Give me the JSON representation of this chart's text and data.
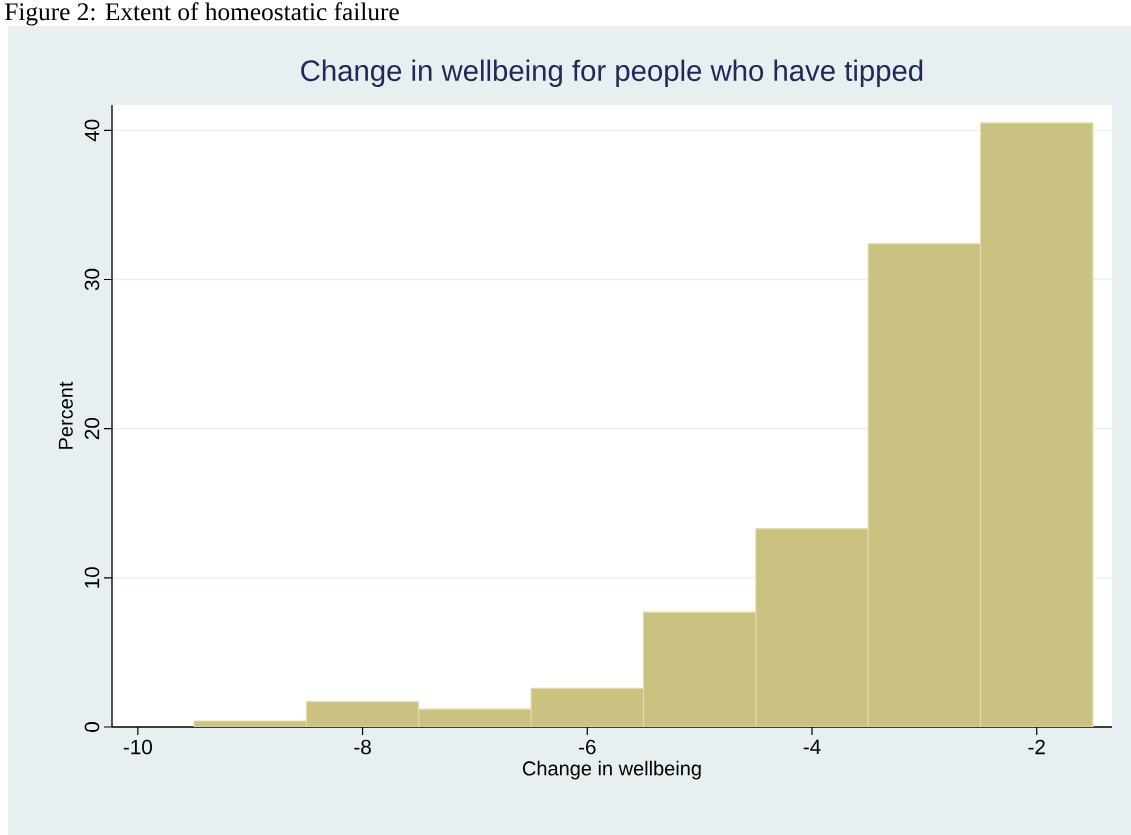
{
  "chart_data": {
    "type": "histogram",
    "title": "Change in wellbeing for people who have tipped",
    "xlabel": "Change in wellbeing",
    "ylabel": "Percent",
    "annotations": [
      "Figure 2: Extent of homeostatic failure"
    ],
    "bins": [
      -9.5,
      -8.5,
      -7.5,
      -6.5,
      -5.5,
      -4.5,
      -3.5,
      -2.5,
      -1.5
    ],
    "values": [
      0.4,
      1.7,
      1.2,
      2.6,
      7.7,
      13.3,
      32.4,
      40.5
    ],
    "color": "#cbc282",
    "xlim": [
      -10.23,
      -1.33
    ],
    "ylim": [
      0,
      41.7
    ],
    "xticks": [
      -10,
      -8,
      -6,
      -4,
      -2
    ],
    "yticks": [
      0,
      10,
      20,
      30,
      40
    ],
    "grid": "y"
  }
}
